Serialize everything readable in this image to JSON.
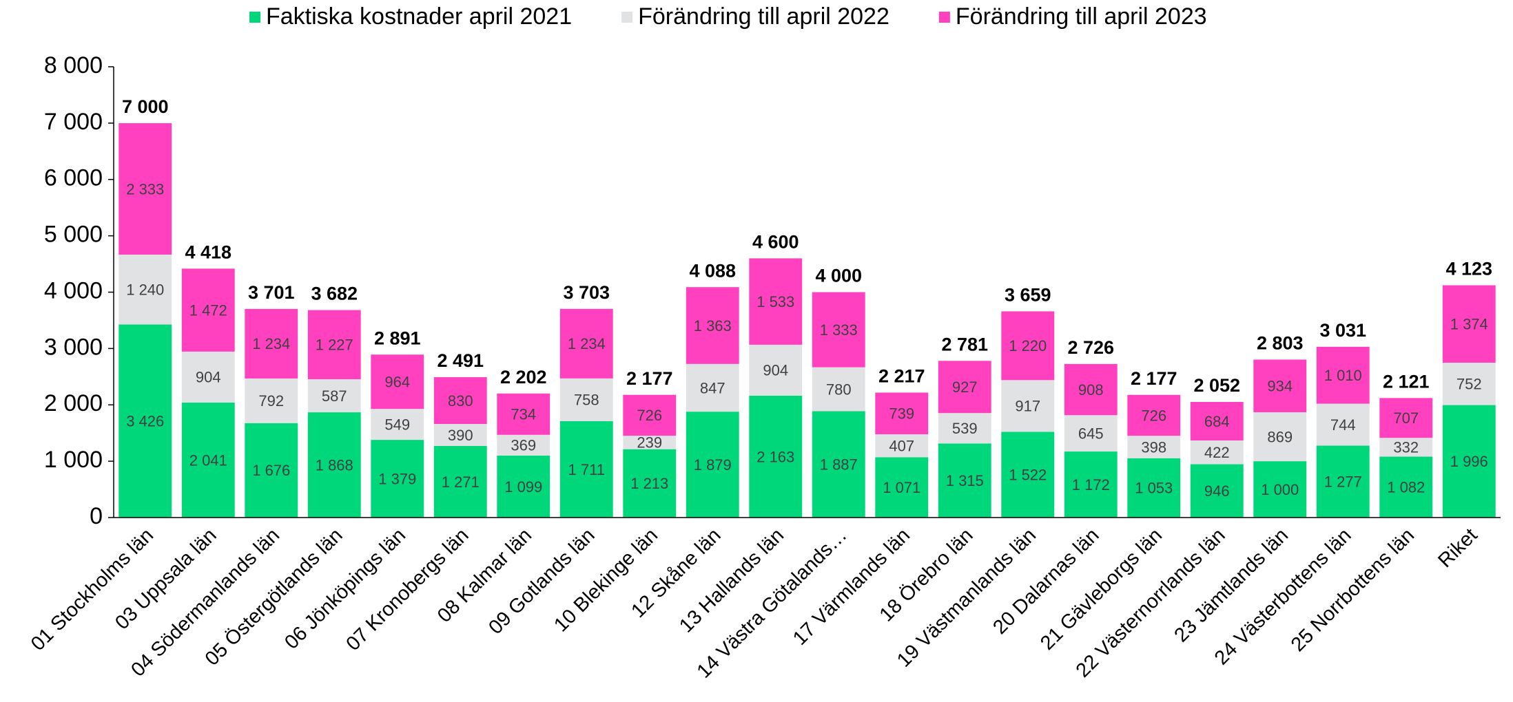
{
  "chart_data": {
    "type": "bar",
    "stacked": true,
    "categories": [
      "01 Stockholms län",
      "03 Uppsala län",
      "04 Södermanlands län",
      "05 Östergötlands län",
      "06 Jönköpings län",
      "07 Kronobergs län",
      "08 Kalmar län",
      "09 Gotlands län",
      "10 Blekinge län",
      "12 Skåne län",
      "13 Hallands län",
      "14 Västra Götalands…",
      "17 Värmlands län",
      "18 Örebro län",
      "19 Västmanlands län",
      "20 Dalarnas län",
      "21 Gävleborgs län",
      "22 Västernorrlands län",
      "23 Jämtlands län",
      "24 Västerbottens län",
      "25 Norrbottens län",
      "Riket"
    ],
    "series": [
      {
        "name": "Faktiska kostnader april 2021",
        "color": "#00d77b",
        "values": [
          3426,
          2041,
          1676,
          1868,
          1379,
          1271,
          1099,
          1711,
          1213,
          1879,
          2163,
          1887,
          1071,
          1315,
          1522,
          1172,
          1053,
          946,
          1000,
          1277,
          1082,
          1996
        ],
        "value_labels": [
          "3 426",
          "2 041",
          "1 676",
          "1 868",
          "1 379",
          "1 271",
          "1 099",
          "1 711",
          "1 213",
          "1 879",
          "2 163",
          "1 887",
          "1 071",
          "1 315",
          "1 522",
          "1 172",
          "1 053",
          "946",
          "1 000",
          "1 277",
          "1 082",
          "1 996"
        ]
      },
      {
        "name": "Förändring till april 2022",
        "color": "#e1e2e4",
        "values": [
          1240,
          904,
          792,
          587,
          549,
          390,
          369,
          758,
          239,
          847,
          904,
          780,
          407,
          539,
          917,
          645,
          398,
          422,
          869,
          744,
          332,
          752
        ],
        "value_labels": [
          "1 240",
          "904",
          "792",
          "587",
          "549",
          "390",
          "369",
          "758",
          "239",
          "847",
          "904",
          "780",
          "407",
          "539",
          "917",
          "645",
          "398",
          "422",
          "869",
          "744",
          "332",
          "752"
        ]
      },
      {
        "name": "Förändring till april 2023",
        "color": "#ff40bf",
        "values": [
          2333,
          1472,
          1234,
          1227,
          964,
          830,
          734,
          1234,
          726,
          1363,
          1533,
          1333,
          739,
          927,
          1220,
          908,
          726,
          684,
          934,
          1010,
          707,
          1374
        ],
        "value_labels": [
          "2 333",
          "1 472",
          "1 234",
          "1 227",
          "964",
          "830",
          "734",
          "1 234",
          "726",
          "1 363",
          "1 533",
          "1 333",
          "739",
          "927",
          "1 220",
          "908",
          "726",
          "684",
          "934",
          "1 010",
          "707",
          "1 374"
        ]
      }
    ],
    "totals": [
      7000,
      4418,
      3701,
      3682,
      2891,
      2491,
      2202,
      3703,
      2177,
      4088,
      4600,
      4000,
      2217,
      2781,
      3659,
      2726,
      2177,
      2052,
      2803,
      3031,
      2121,
      4123
    ],
    "total_labels": [
      "7 000",
      "4 418",
      "3 701",
      "3 682",
      "2 891",
      "2 491",
      "2 202",
      "3 703",
      "2 177",
      "4 088",
      "4 600",
      "4 000",
      "2 217",
      "2 781",
      "3 659",
      "2 726",
      "2 177",
      "2 052",
      "2 803",
      "3 031",
      "2 121",
      "4 123"
    ],
    "ylim": [
      0,
      8000
    ],
    "yticks": [
      0,
      {
        "value": 1000,
        "label": "1 000"
      },
      {
        "value": 2000,
        "label": "2 000"
      },
      {
        "value": 3000,
        "label": "3 000"
      },
      {
        "value": 4000,
        "label": "4 000"
      },
      {
        "value": 5000,
        "label": "5 000"
      },
      {
        "value": 6000,
        "label": "6 000"
      },
      {
        "value": 7000,
        "label": "7 000"
      },
      {
        "value": 8000,
        "label": "8 000"
      }
    ],
    "legend": "top",
    "grid": false
  }
}
